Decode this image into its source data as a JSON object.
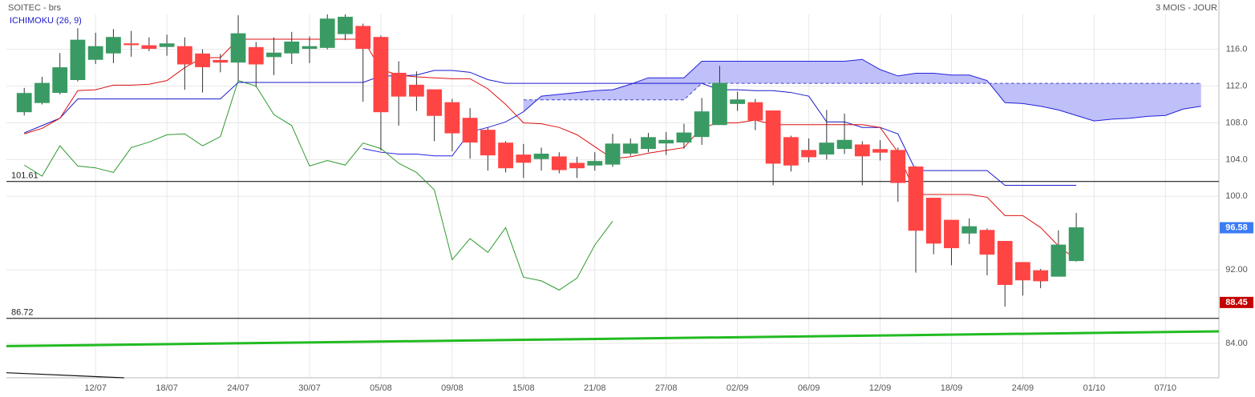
{
  "chart_data": {
    "type": "candlestick",
    "title": "SOITEC - brs",
    "subtitle": "3 MOIS - JOUR",
    "indicator": "ICHIMOKU (26, 9)",
    "categories": [
      null,
      null,
      null,
      null,
      "12/07",
      null,
      null,
      null,
      "18/07",
      null,
      null,
      null,
      "24/07",
      null,
      null,
      null,
      "30/07",
      null,
      null,
      null,
      "05/08",
      null,
      null,
      null,
      "09/08",
      null,
      null,
      null,
      "15/08",
      null,
      null,
      null,
      "21/08",
      null,
      null,
      null,
      "27/08",
      null,
      null,
      null,
      "02/09",
      null,
      null,
      null,
      "06/09",
      null,
      null,
      null,
      "12/09",
      null,
      null,
      null,
      "18/09",
      null,
      null,
      null,
      "24/09",
      null,
      null,
      null,
      "01/10",
      null,
      null,
      null,
      "07/10",
      null,
      null
    ],
    "open": [
      109.2,
      110.2,
      111.3,
      112.7,
      114.9,
      115.6,
      116.6,
      116.4,
      116.3,
      116.3,
      115.5,
      114.8,
      114.6,
      116.2,
      115.2,
      115.6,
      116.1,
      116.2,
      117.7,
      118.5,
      117.3,
      113.4,
      112.1,
      111.6,
      110.2,
      108.5,
      107.2,
      105.8,
      104.5,
      104.1,
      104.3,
      103.6,
      103.4,
      103.5,
      104.7,
      105.2,
      105.8,
      105.9,
      106.5,
      107.8,
      110.1,
      110.2,
      109.3,
      106.4,
      105.0,
      104.6,
      105.2,
      105.6,
      105.1,
      105.0,
      103.2,
      99.8,
      97.4,
      96.0,
      96.3,
      95.1,
      92.8,
      91.9,
      91.3,
      93.0,
      null,
      null,
      null,
      null,
      null,
      null,
      null
    ],
    "high": [
      111.8,
      113.0,
      115.6,
      118.3,
      117.8,
      118.2,
      118.0,
      117.3,
      117.6,
      117.3,
      116.0,
      115.5,
      119.7,
      116.8,
      117.3,
      117.9,
      117.4,
      119.8,
      119.8,
      118.8,
      117.5,
      114.7,
      113.6,
      111.6,
      110.6,
      109.6,
      107.5,
      106.0,
      105.7,
      105.3,
      104.8,
      104.3,
      104.8,
      106.8,
      106.3,
      106.9,
      107.0,
      107.9,
      110.7,
      114.2,
      111.4,
      110.6,
      109.3,
      106.6,
      106.3,
      109.4,
      109.0,
      106.0,
      106.1,
      105.3,
      103.3,
      99.8,
      97.4,
      97.6,
      96.5,
      95.1,
      92.8,
      92.1,
      96.3,
      98.2,
      null,
      null,
      null,
      null,
      null,
      null,
      null
    ],
    "low": [
      108.8,
      110.0,
      111.1,
      112.5,
      114.4,
      114.5,
      115.2,
      115.8,
      115.3,
      111.6,
      111.3,
      113.5,
      112.6,
      111.9,
      113.2,
      114.4,
      114.5,
      116.0,
      117.0,
      110.3,
      105.0,
      107.7,
      109.3,
      106.0,
      104.9,
      104.1,
      102.8,
      102.6,
      102.0,
      102.8,
      102.5,
      102.0,
      102.8,
      103.2,
      104.4,
      104.8,
      104.5,
      105.2,
      105.6,
      107.8,
      109.3,
      107.2,
      101.2,
      102.7,
      103.7,
      104.0,
      104.6,
      101.2,
      103.9,
      99.4,
      91.7,
      93.7,
      92.5,
      94.8,
      91.4,
      88.0,
      89.2,
      90.0,
      91.3,
      92.9,
      null,
      null,
      null,
      null,
      null,
      null,
      null
    ],
    "close": [
      111.2,
      112.3,
      114.0,
      117.0,
      116.3,
      117.3,
      116.5,
      116.1,
      116.6,
      114.4,
      114.1,
      114.6,
      117.7,
      114.4,
      115.6,
      116.8,
      116.3,
      119.3,
      119.5,
      116.1,
      109.2,
      110.9,
      110.9,
      108.8,
      106.9,
      105.9,
      104.5,
      103.1,
      103.7,
      104.6,
      102.9,
      103.1,
      103.8,
      105.7,
      105.7,
      106.4,
      106.1,
      106.9,
      109.2,
      112.3,
      110.5,
      108.3,
      103.6,
      103.4,
      104.3,
      105.8,
      106.1,
      104.4,
      104.8,
      101.5,
      96.3,
      94.9,
      94.4,
      96.7,
      93.7,
      90.4,
      90.9,
      90.8,
      94.7,
      96.58,
      null,
      null,
      null,
      null,
      null,
      null,
      null
    ],
    "up_color": "#3a9a63",
    "down_color": "#ff4444",
    "lines": {
      "tenkan": {
        "color": "#dd1111",
        "values": [
          106.8,
          107.4,
          108.5,
          111.5,
          111.6,
          112.1,
          112.1,
          112.2,
          112.6,
          114.0,
          115.1,
          115.1,
          117.1,
          117.1,
          117.1,
          117.1,
          117.1,
          117.1,
          117.1,
          117.1,
          113.8,
          113.2,
          113.0,
          112.9,
          112.8,
          112.8,
          111.7,
          110.0,
          108.0,
          107.9,
          107.5,
          106.7,
          105.4,
          104.1,
          104.3,
          104.7,
          105.0,
          105.3,
          107.5,
          108.0,
          108.0,
          108.3,
          107.8,
          107.8,
          107.8,
          107.8,
          107.8,
          107.8,
          107.5,
          104.8,
          100.2,
          100.2,
          100.2,
          100.2,
          99.9,
          97.9,
          97.9,
          96.6,
          94.6,
          93.1,
          null,
          null,
          null,
          null,
          null,
          null,
          null
        ]
      },
      "kijun": {
        "color": "#1a1acc",
        "values": [
          106.9,
          107.7,
          108.5,
          110.6,
          110.6,
          110.6,
          110.6,
          110.6,
          110.6,
          110.6,
          110.6,
          110.6,
          112.4,
          112.4,
          112.4,
          112.4,
          112.4,
          112.4,
          112.4,
          112.4,
          113.1,
          113.1,
          113.2,
          113.7,
          113.7,
          113.5,
          112.7,
          112.3,
          112.3,
          112.3,
          112.3,
          112.3,
          112.3,
          112.3,
          112.3,
          112.3,
          112.3,
          112.3,
          112.3,
          111.6,
          111.6,
          111.5,
          111.5,
          111.3,
          110.9,
          108.1,
          108.1,
          107.5,
          107.5,
          106.8,
          102.8,
          102.8,
          102.8,
          102.8,
          102.8,
          101.2,
          101.2,
          101.2,
          101.2,
          101.2,
          null,
          null,
          null,
          null,
          null,
          null,
          null
        ]
      },
      "chikou": {
        "color": "#2e9a2e",
        "values": [
          103.4,
          102.2,
          105.5,
          103.3,
          103.1,
          102.6,
          105.3,
          105.9,
          106.7,
          106.8,
          105.5,
          106.5,
          112.6,
          112.0,
          108.9,
          107.7,
          103.3,
          103.9,
          103.4,
          105.8,
          105.2,
          103.6,
          102.6,
          100.7,
          93.1,
          95.4,
          93.9,
          96.6,
          91.2,
          90.8,
          89.8,
          91.1,
          94.7,
          97.3,
          null,
          null,
          null,
          null,
          null,
          null,
          null,
          null,
          null,
          null,
          null,
          null,
          null,
          null,
          null,
          null,
          null,
          null,
          null,
          null,
          null,
          null,
          null,
          null,
          null,
          null,
          null,
          null,
          null,
          null,
          null,
          null,
          null
        ]
      },
      "senkou_a": {
        "color": "#2222dd",
        "values": [
          null,
          null,
          null,
          null,
          null,
          null,
          null,
          null,
          null,
          null,
          null,
          null,
          null,
          null,
          null,
          null,
          null,
          null,
          null,
          105.2,
          104.8,
          104.6,
          104.6,
          104.4,
          104.4,
          107.0,
          107.5,
          108.1,
          109.2,
          110.9,
          111.1,
          111.3,
          111.5,
          111.6,
          112.2,
          112.9,
          112.9,
          112.9,
          114.7,
          114.7,
          114.7,
          114.7,
          114.7,
          114.7,
          114.7,
          114.7,
          114.7,
          114.9,
          113.8,
          113.1,
          113.4,
          113.4,
          113.2,
          113.2,
          112.6,
          110.2,
          110.1,
          109.8,
          109.4,
          108.8,
          108.2,
          108.4,
          108.5,
          108.7,
          108.8,
          109.5,
          109.8
        ]
      },
      "senkou_b": {
        "color": "#4444cc",
        "values": [
          null,
          null,
          null,
          null,
          null,
          null,
          null,
          null,
          null,
          null,
          null,
          null,
          null,
          null,
          null,
          null,
          null,
          null,
          null,
          null,
          null,
          null,
          null,
          null,
          null,
          null,
          null,
          null,
          110.5,
          110.5,
          110.5,
          110.5,
          110.5,
          110.5,
          110.5,
          110.5,
          110.5,
          110.5,
          112.3,
          112.3,
          112.3,
          112.3,
          112.3,
          112.3,
          112.3,
          112.3,
          112.3,
          112.3,
          112.3,
          112.3,
          112.3,
          112.3,
          112.3,
          112.3,
          112.3,
          112.3,
          112.3,
          112.3,
          112.3,
          112.3,
          112.3,
          112.3,
          112.3,
          112.3,
          112.3,
          112.3,
          112.3
        ]
      }
    },
    "cloud_color": "#b8b8f8",
    "levels": [
      101.61,
      86.72
    ],
    "trendlines": [
      {
        "color": "#22bb22",
        "x": [
          -1,
          67
        ],
        "values": [
          83.7,
          85.3
        ]
      },
      {
        "color": "#111111",
        "x": [
          -1,
          5.6
        ],
        "values": [
          80.8,
          80.25
        ]
      }
    ],
    "badges": [
      {
        "value": 96.58,
        "color": "#3b7cf5"
      },
      {
        "value": 88.45,
        "color": "#c40000"
      }
    ],
    "ylim": [
      80.25,
      119.8
    ],
    "yticks": [
      {
        "value": 116,
        "label": "116.0"
      },
      {
        "value": 112,
        "label": "112.0"
      },
      {
        "value": 108,
        "label": "108.0"
      },
      {
        "value": 104,
        "label": "104.0"
      },
      {
        "value": 100,
        "label": "100.0"
      },
      {
        "value": 92,
        "label": "92.00"
      },
      {
        "value": 84,
        "label": "84.00"
      }
    ],
    "grid": true
  }
}
